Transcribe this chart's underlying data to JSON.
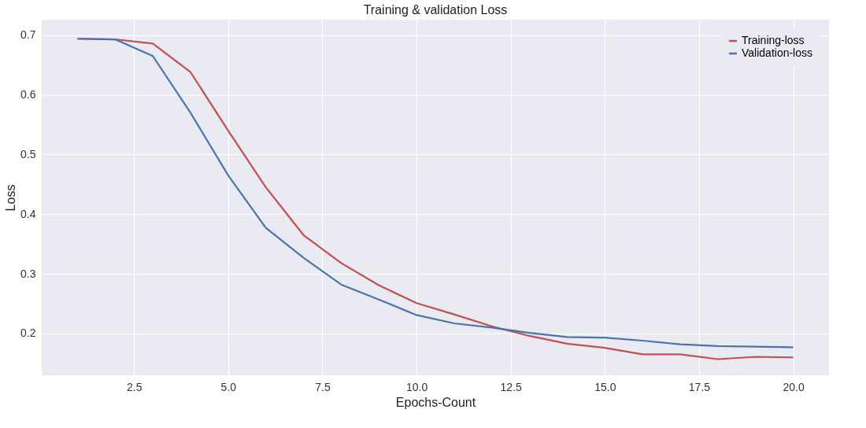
{
  "chart_data": {
    "type": "line",
    "title": "Training & validation Loss",
    "xlabel": "Epochs-Count",
    "ylabel": "Loss",
    "x": [
      1,
      2,
      3,
      4,
      5,
      6,
      7,
      8,
      9,
      10,
      11,
      12,
      13,
      14,
      15,
      16,
      17,
      18,
      19,
      20
    ],
    "series": [
      {
        "name": "Training-loss",
        "color": "#c44e52",
        "values": [
          0.694,
          0.693,
          0.686,
          0.638,
          0.54,
          0.445,
          0.365,
          0.318,
          0.281,
          0.251,
          0.232,
          0.212,
          0.196,
          0.183,
          0.176,
          0.165,
          0.165,
          0.157,
          0.161,
          0.16
        ]
      },
      {
        "name": "Validation-loss",
        "color": "#4c72b0",
        "values": [
          0.694,
          0.693,
          0.665,
          0.57,
          0.465,
          0.377,
          0.327,
          0.282,
          0.257,
          0.231,
          0.217,
          0.21,
          0.201,
          0.194,
          0.193,
          0.188,
          0.182,
          0.179,
          0.178,
          0.177
        ]
      }
    ],
    "xlim": [
      0.05,
      20.95
    ],
    "xticks": [
      {
        "value": 2.5,
        "label": "2.5"
      },
      {
        "value": 5,
        "label": "5.0"
      },
      {
        "value": 7.5,
        "label": "7.5"
      },
      {
        "value": 10,
        "label": "10.0"
      },
      {
        "value": 12.5,
        "label": "12.5"
      },
      {
        "value": 15,
        "label": "15.0"
      },
      {
        "value": 17.5,
        "label": "17.5"
      },
      {
        "value": 20,
        "label": "20.0"
      }
    ],
    "ylim": [
      0.13,
      0.726
    ],
    "yticks": [
      0.2,
      0.3,
      0.4,
      0.5,
      0.6,
      0.7
    ],
    "grid": true,
    "legend": "top right"
  }
}
